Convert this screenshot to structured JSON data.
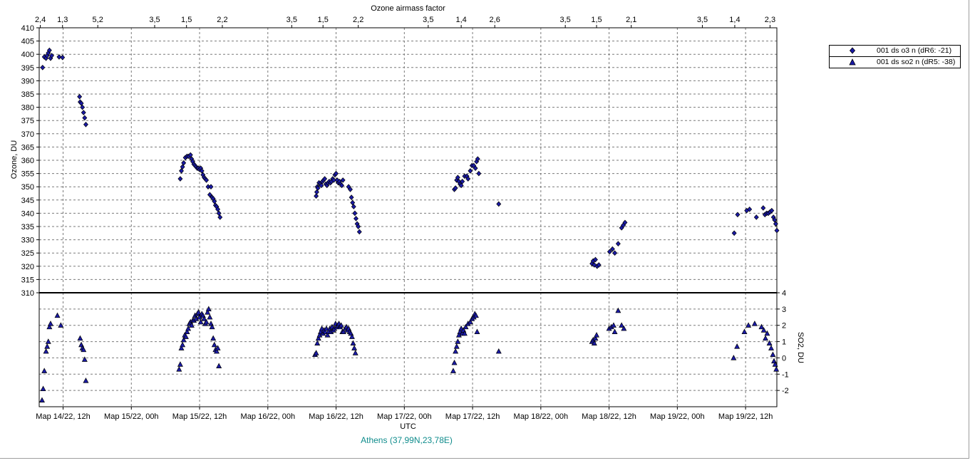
{
  "chart_data": {
    "type": "scatter",
    "title": "Ozone airmass factor",
    "xlabel": "UTC",
    "caption": "Athens (37,99N,23,78E)",
    "x_tick_labels": [
      "Мар 14/22, 12h",
      "Мар 15/22, 00h",
      "Мар 15/22, 12h",
      "Мар 16/22, 00h",
      "Мар 16/22, 12h",
      "Мар 17/22, 00h",
      "Мар 17/22, 12h",
      "Мар 18/22, 00h",
      "Мар 18/22, 12h",
      "Мар 19/22, 00h",
      "Мар 19/22, 12h"
    ],
    "x_tick_hours": [
      36,
      48,
      60,
      72,
      84,
      96,
      108,
      120,
      132,
      144,
      156
    ],
    "x_range_hours": [
      31.8,
      161.5
    ],
    "airmass_top_labels": [
      {
        "h": 32.0,
        "label": "2,4"
      },
      {
        "h": 35.9,
        "label": "1,3"
      },
      {
        "h": 42.1,
        "label": "5,2"
      },
      {
        "h": 52.1,
        "label": "3,5"
      },
      {
        "h": 57.7,
        "label": "1,5"
      },
      {
        "h": 64.0,
        "label": "2,2"
      },
      {
        "h": 76.2,
        "label": "3,5"
      },
      {
        "h": 81.7,
        "label": "1,5"
      },
      {
        "h": 87.9,
        "label": "2,2"
      },
      {
        "h": 100.2,
        "label": "3,5"
      },
      {
        "h": 106.0,
        "label": "1,4"
      },
      {
        "h": 111.9,
        "label": "2,6"
      },
      {
        "h": 124.3,
        "label": "3,5"
      },
      {
        "h": 129.8,
        "label": "1,5"
      },
      {
        "h": 135.9,
        "label": "2,1"
      },
      {
        "h": 148.4,
        "label": "3,5"
      },
      {
        "h": 154.1,
        "label": "1,4"
      },
      {
        "h": 160.3,
        "label": "2,3"
      }
    ],
    "ozone_axis": {
      "label": "Ozone, DU",
      "ylim": [
        310,
        410
      ],
      "ticks": [
        310,
        315,
        320,
        325,
        330,
        335,
        340,
        345,
        350,
        355,
        360,
        365,
        370,
        375,
        380,
        385,
        390,
        395,
        400,
        405,
        410
      ]
    },
    "so2_axis": {
      "label": "SO2, DU",
      "ylim": [
        -3,
        4
      ],
      "ticks": [
        -2,
        -1,
        0,
        1,
        2,
        3,
        4
      ]
    },
    "grid": true,
    "legend_position": "right",
    "series": [
      {
        "name": "001 ds o3  n (dR6: -21)",
        "marker": "diamond",
        "color": "#1a1aa6",
        "points": [
          [
            32.4,
            395
          ],
          [
            32.7,
            399
          ],
          [
            33.0,
            398.5
          ],
          [
            33.2,
            399.5
          ],
          [
            33.4,
            400.5
          ],
          [
            33.6,
            401.5
          ],
          [
            33.8,
            398.5
          ],
          [
            34.0,
            399.5
          ],
          [
            35.3,
            399
          ],
          [
            35.9,
            398.8
          ],
          [
            38.9,
            384
          ],
          [
            39.0,
            382
          ],
          [
            39.2,
            381.5
          ],
          [
            39.4,
            380
          ],
          [
            39.6,
            378
          ],
          [
            39.8,
            376
          ],
          [
            40.0,
            373.5
          ],
          [
            56.6,
            353
          ],
          [
            56.8,
            356
          ],
          [
            57.0,
            357.5
          ],
          [
            57.2,
            359
          ],
          [
            57.5,
            361
          ],
          [
            57.8,
            361.5
          ],
          [
            58.1,
            361.5
          ],
          [
            58.4,
            362
          ],
          [
            58.6,
            360.5
          ],
          [
            58.8,
            359.5
          ],
          [
            59.0,
            358.5
          ],
          [
            59.2,
            358
          ],
          [
            59.4,
            357.5
          ],
          [
            59.6,
            357
          ],
          [
            59.8,
            357
          ],
          [
            60.0,
            356.5
          ],
          [
            60.2,
            357
          ],
          [
            60.4,
            356
          ],
          [
            60.6,
            354.5
          ],
          [
            60.8,
            353.5
          ],
          [
            61.0,
            353
          ],
          [
            61.2,
            352.5
          ],
          [
            61.5,
            350
          ],
          [
            61.8,
            347
          ],
          [
            62.0,
            350
          ],
          [
            62.2,
            346
          ],
          [
            62.4,
            345.5
          ],
          [
            62.6,
            344.5
          ],
          [
            62.8,
            343
          ],
          [
            63.0,
            342.5
          ],
          [
            63.2,
            341.5
          ],
          [
            63.4,
            340
          ],
          [
            63.6,
            338.5
          ],
          [
            80.5,
            346.5
          ],
          [
            80.6,
            348
          ],
          [
            80.7,
            350
          ],
          [
            80.8,
            349.5
          ],
          [
            81.0,
            351.5
          ],
          [
            81.2,
            351
          ],
          [
            81.4,
            350.5
          ],
          [
            81.6,
            352
          ],
          [
            81.8,
            352.5
          ],
          [
            82.0,
            353
          ],
          [
            82.2,
            351
          ],
          [
            82.4,
            350.5
          ],
          [
            82.6,
            351.5
          ],
          [
            82.8,
            352
          ],
          [
            83.0,
            351.5
          ],
          [
            83.2,
            352
          ],
          [
            83.4,
            353
          ],
          [
            83.6,
            352.5
          ],
          [
            83.8,
            354.5
          ],
          [
            84.0,
            355
          ],
          [
            84.2,
            352.5
          ],
          [
            84.4,
            351.5
          ],
          [
            84.6,
            352
          ],
          [
            84.8,
            351
          ],
          [
            85.0,
            350.5
          ],
          [
            85.2,
            352.5
          ],
          [
            86.2,
            350
          ],
          [
            86.5,
            349
          ],
          [
            86.7,
            346
          ],
          [
            86.9,
            344
          ],
          [
            87.1,
            342.5
          ],
          [
            87.3,
            340
          ],
          [
            87.5,
            338
          ],
          [
            87.7,
            336
          ],
          [
            87.9,
            335
          ],
          [
            88.1,
            333
          ],
          [
            104.8,
            349
          ],
          [
            105.0,
            349.5
          ],
          [
            105.2,
            352.5
          ],
          [
            105.4,
            353.5
          ],
          [
            105.6,
            352
          ],
          [
            105.8,
            351
          ],
          [
            106.0,
            350.5
          ],
          [
            106.2,
            352
          ],
          [
            106.6,
            354
          ],
          [
            107.0,
            354
          ],
          [
            107.2,
            353
          ],
          [
            107.6,
            356
          ],
          [
            107.9,
            358
          ],
          [
            108.2,
            358
          ],
          [
            108.5,
            357
          ],
          [
            108.7,
            359.5
          ],
          [
            108.9,
            360.5
          ],
          [
            109.1,
            355
          ],
          [
            112.6,
            343.5
          ],
          [
            129.0,
            321
          ],
          [
            129.2,
            322
          ],
          [
            129.4,
            320.5
          ],
          [
            129.6,
            322.5
          ],
          [
            129.9,
            320
          ],
          [
            130.2,
            320.5
          ],
          [
            132.1,
            325.5
          ],
          [
            132.6,
            326.5
          ],
          [
            133.0,
            325
          ],
          [
            133.6,
            328.5
          ],
          [
            134.2,
            334.5
          ],
          [
            134.5,
            335.5
          ],
          [
            134.8,
            336.5
          ],
          [
            154.0,
            332.5
          ],
          [
            154.6,
            339.5
          ],
          [
            156.2,
            341
          ],
          [
            156.7,
            341.5
          ],
          [
            157.9,
            338.5
          ],
          [
            159.1,
            342
          ],
          [
            159.4,
            339.5
          ],
          [
            159.7,
            340
          ],
          [
            160.0,
            340
          ],
          [
            160.3,
            340.5
          ],
          [
            160.6,
            341
          ],
          [
            160.9,
            338.5
          ],
          [
            161.1,
            337.5
          ],
          [
            161.3,
            336
          ],
          [
            161.5,
            333.5
          ]
        ]
      },
      {
        "name": "001 ds so2 n (dR5: -38)",
        "marker": "triangle",
        "color": "#1a1aa6",
        "points": [
          [
            32.3,
            -2.6
          ],
          [
            32.5,
            -1.9
          ],
          [
            32.7,
            -0.8
          ],
          [
            33.0,
            0.4
          ],
          [
            33.2,
            0.7
          ],
          [
            33.4,
            1.0
          ],
          [
            33.6,
            1.9
          ],
          [
            33.8,
            2.1
          ],
          [
            35.0,
            2.6
          ],
          [
            35.6,
            2.0
          ],
          [
            39.0,
            1.2
          ],
          [
            39.2,
            0.8
          ],
          [
            39.4,
            0.6
          ],
          [
            39.6,
            0.5
          ],
          [
            39.8,
            -0.1
          ],
          [
            40.0,
            -1.4
          ],
          [
            56.4,
            -0.7
          ],
          [
            56.6,
            -0.4
          ],
          [
            56.8,
            0.6
          ],
          [
            57.0,
            0.8
          ],
          [
            57.2,
            1.1
          ],
          [
            57.4,
            1.4
          ],
          [
            57.6,
            1.3
          ],
          [
            57.8,
            1.6
          ],
          [
            58.0,
            1.8
          ],
          [
            58.2,
            2.1
          ],
          [
            58.4,
            2.2
          ],
          [
            58.6,
            2.0
          ],
          [
            58.8,
            2.3
          ],
          [
            59.0,
            2.3
          ],
          [
            59.2,
            2.6
          ],
          [
            59.4,
            2.4
          ],
          [
            59.6,
            2.7
          ],
          [
            59.8,
            2.8
          ],
          [
            60.0,
            2.5
          ],
          [
            60.2,
            2.2
          ],
          [
            60.4,
            2.7
          ],
          [
            60.6,
            2.6
          ],
          [
            60.8,
            2.4
          ],
          [
            61.0,
            2.1
          ],
          [
            61.2,
            2.2
          ],
          [
            61.4,
            2.8
          ],
          [
            61.6,
            3.0
          ],
          [
            61.8,
            2.5
          ],
          [
            62.0,
            2.1
          ],
          [
            62.2,
            1.9
          ],
          [
            62.4,
            1.2
          ],
          [
            62.6,
            0.8
          ],
          [
            62.8,
            0.5
          ],
          [
            63.0,
            0.4
          ],
          [
            63.2,
            0.6
          ],
          [
            63.4,
            -0.5
          ],
          [
            80.3,
            0.2
          ],
          [
            80.5,
            0.3
          ],
          [
            80.7,
            0.9
          ],
          [
            80.9,
            1.2
          ],
          [
            81.1,
            1.4
          ],
          [
            81.3,
            1.6
          ],
          [
            81.5,
            1.8
          ],
          [
            81.7,
            1.5
          ],
          [
            81.9,
            1.7
          ],
          [
            82.1,
            1.6
          ],
          [
            82.3,
            1.8
          ],
          [
            82.5,
            1.4
          ],
          [
            82.7,
            1.6
          ],
          [
            82.9,
            1.8
          ],
          [
            83.1,
            1.6
          ],
          [
            83.3,
            1.9
          ],
          [
            83.5,
            1.7
          ],
          [
            83.7,
            1.8
          ],
          [
            83.9,
            2.1
          ],
          [
            84.1,
            1.9
          ],
          [
            84.3,
            2.0
          ],
          [
            84.5,
            2.1
          ],
          [
            84.7,
            1.9
          ],
          [
            84.9,
            2.0
          ],
          [
            85.1,
            1.6
          ],
          [
            85.3,
            1.6
          ],
          [
            85.6,
            1.8
          ],
          [
            85.8,
            1.9
          ],
          [
            86.0,
            1.7
          ],
          [
            86.2,
            1.8
          ],
          [
            86.4,
            1.6
          ],
          [
            86.6,
            1.5
          ],
          [
            86.8,
            1.3
          ],
          [
            87.0,
            0.9
          ],
          [
            87.2,
            0.6
          ],
          [
            87.4,
            0.3
          ],
          [
            104.6,
            -0.8
          ],
          [
            104.8,
            -0.3
          ],
          [
            105.0,
            0.4
          ],
          [
            105.2,
            0.7
          ],
          [
            105.4,
            1.0
          ],
          [
            105.6,
            1.4
          ],
          [
            105.8,
            1.6
          ],
          [
            106.0,
            1.8
          ],
          [
            106.2,
            1.5
          ],
          [
            106.4,
            1.7
          ],
          [
            106.6,
            1.5
          ],
          [
            106.8,
            1.9
          ],
          [
            107.2,
            2.1
          ],
          [
            107.6,
            2.2
          ],
          [
            107.9,
            2.4
          ],
          [
            108.2,
            2.5
          ],
          [
            108.4,
            2.7
          ],
          [
            108.6,
            2.6
          ],
          [
            108.8,
            1.6
          ],
          [
            112.6,
            0.4
          ],
          [
            129.0,
            1.0
          ],
          [
            129.2,
            1.1
          ],
          [
            129.4,
            0.9
          ],
          [
            129.6,
            1.2
          ],
          [
            129.8,
            1.4
          ],
          [
            132.0,
            1.8
          ],
          [
            132.4,
            1.9
          ],
          [
            132.8,
            2.0
          ],
          [
            133.0,
            1.6
          ],
          [
            133.6,
            2.9
          ],
          [
            134.2,
            2.0
          ],
          [
            134.6,
            1.8
          ],
          [
            153.9,
            0.0
          ],
          [
            154.5,
            0.7
          ],
          [
            155.8,
            1.6
          ],
          [
            156.5,
            2.0
          ],
          [
            157.6,
            2.1
          ],
          [
            158.8,
            1.9
          ],
          [
            159.2,
            1.7
          ],
          [
            159.5,
            1.2
          ],
          [
            159.8,
            1.5
          ],
          [
            160.2,
            0.9
          ],
          [
            160.5,
            0.6
          ],
          [
            160.8,
            0.2
          ],
          [
            161.0,
            -0.2
          ],
          [
            161.2,
            -0.4
          ],
          [
            161.4,
            -0.7
          ]
        ]
      }
    ]
  }
}
